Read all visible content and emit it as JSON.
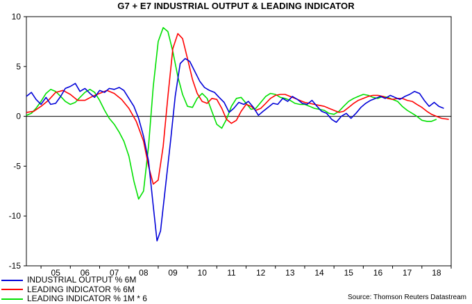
{
  "chart_data": {
    "type": "line",
    "title": "G7 + E7 INDUSTRIAL OUTPUT & LEADING INDICATOR",
    "source": "Source: Thomson Reuters Datastream",
    "ylim": [
      -15,
      10
    ],
    "yticks": [
      10,
      5,
      0,
      -5,
      -10,
      -15
    ],
    "xlim": [
      2004.5,
      2019.0
    ],
    "xtick_labels": [
      "05",
      "06",
      "07",
      "08",
      "09",
      "10",
      "11",
      "12",
      "13",
      "14",
      "15",
      "16",
      "17",
      "18"
    ],
    "grid": false,
    "zero_line": true,
    "legend_position": "bottom-left",
    "series": [
      {
        "name": "INDUSTRIAL OUTPUT % 6M",
        "color": "#0000d8",
        "points": [
          [
            2004.5,
            2.0
          ],
          [
            2004.67,
            2.4
          ],
          [
            2004.83,
            1.7
          ],
          [
            2005.0,
            1.2
          ],
          [
            2005.17,
            1.9
          ],
          [
            2005.33,
            1.2
          ],
          [
            2005.5,
            1.3
          ],
          [
            2005.67,
            2.0
          ],
          [
            2005.83,
            2.8
          ],
          [
            2006.0,
            3.0
          ],
          [
            2006.17,
            3.3
          ],
          [
            2006.33,
            2.5
          ],
          [
            2006.5,
            2.8
          ],
          [
            2006.67,
            2.3
          ],
          [
            2006.83,
            1.9
          ],
          [
            2007.0,
            2.6
          ],
          [
            2007.17,
            2.4
          ],
          [
            2007.33,
            2.8
          ],
          [
            2007.5,
            2.7
          ],
          [
            2007.67,
            2.9
          ],
          [
            2007.83,
            2.6
          ],
          [
            2008.0,
            1.8
          ],
          [
            2008.17,
            1.0
          ],
          [
            2008.33,
            -0.2
          ],
          [
            2008.5,
            -2.0
          ],
          [
            2008.67,
            -4.5
          ],
          [
            2008.83,
            -9.0
          ],
          [
            2008.96,
            -12.5
          ],
          [
            2009.08,
            -11.5
          ],
          [
            2009.25,
            -7.0
          ],
          [
            2009.42,
            -2.5
          ],
          [
            2009.58,
            2.0
          ],
          [
            2009.75,
            5.3
          ],
          [
            2009.92,
            5.8
          ],
          [
            2010.08,
            5.5
          ],
          [
            2010.25,
            4.5
          ],
          [
            2010.42,
            3.5
          ],
          [
            2010.58,
            2.9
          ],
          [
            2010.75,
            2.6
          ],
          [
            2010.92,
            2.4
          ],
          [
            2011.08,
            1.9
          ],
          [
            2011.25,
            1.4
          ],
          [
            2011.42,
            0.4
          ],
          [
            2011.58,
            0.8
          ],
          [
            2011.75,
            1.4
          ],
          [
            2011.92,
            1.2
          ],
          [
            2012.08,
            1.5
          ],
          [
            2012.25,
            0.9
          ],
          [
            2012.42,
            0.1
          ],
          [
            2012.58,
            0.5
          ],
          [
            2012.75,
            0.9
          ],
          [
            2012.92,
            1.3
          ],
          [
            2013.08,
            1.2
          ],
          [
            2013.25,
            1.8
          ],
          [
            2013.42,
            1.5
          ],
          [
            2013.58,
            2.0
          ],
          [
            2013.75,
            1.7
          ],
          [
            2013.92,
            1.3
          ],
          [
            2014.08,
            1.2
          ],
          [
            2014.25,
            1.6
          ],
          [
            2014.42,
            1.0
          ],
          [
            2014.58,
            0.5
          ],
          [
            2014.75,
            0.3
          ],
          [
            2014.92,
            -0.3
          ],
          [
            2015.08,
            -0.6
          ],
          [
            2015.25,
            0.0
          ],
          [
            2015.42,
            0.3
          ],
          [
            2015.58,
            -0.2
          ],
          [
            2015.75,
            0.3
          ],
          [
            2015.92,
            0.9
          ],
          [
            2016.08,
            1.3
          ],
          [
            2016.25,
            1.6
          ],
          [
            2016.42,
            1.8
          ],
          [
            2016.58,
            2.0
          ],
          [
            2016.75,
            1.8
          ],
          [
            2016.92,
            2.1
          ],
          [
            2017.08,
            1.9
          ],
          [
            2017.25,
            1.7
          ],
          [
            2017.42,
            2.0
          ],
          [
            2017.58,
            2.2
          ],
          [
            2017.75,
            2.5
          ],
          [
            2017.92,
            2.3
          ],
          [
            2018.08,
            1.6
          ],
          [
            2018.25,
            1.0
          ],
          [
            2018.42,
            1.4
          ],
          [
            2018.58,
            1.0
          ],
          [
            2018.75,
            0.8
          ]
        ]
      },
      {
        "name": "LEADING INDICATOR % 6M",
        "color": "#ff0000",
        "points": [
          [
            2004.5,
            0.4
          ],
          [
            2004.75,
            0.5
          ],
          [
            2005.0,
            1.0
          ],
          [
            2005.25,
            1.6
          ],
          [
            2005.5,
            2.4
          ],
          [
            2005.75,
            2.6
          ],
          [
            2006.0,
            2.2
          ],
          [
            2006.25,
            1.6
          ],
          [
            2006.5,
            1.6
          ],
          [
            2006.75,
            2.0
          ],
          [
            2007.0,
            2.3
          ],
          [
            2007.25,
            2.6
          ],
          [
            2007.5,
            2.3
          ],
          [
            2007.75,
            1.7
          ],
          [
            2008.0,
            0.8
          ],
          [
            2008.25,
            -0.5
          ],
          [
            2008.5,
            -2.5
          ],
          [
            2008.67,
            -5.0
          ],
          [
            2008.83,
            -6.8
          ],
          [
            2009.0,
            -6.4
          ],
          [
            2009.17,
            -3.0
          ],
          [
            2009.33,
            2.0
          ],
          [
            2009.5,
            6.8
          ],
          [
            2009.67,
            8.3
          ],
          [
            2009.83,
            7.8
          ],
          [
            2010.0,
            5.8
          ],
          [
            2010.17,
            3.7
          ],
          [
            2010.33,
            2.3
          ],
          [
            2010.5,
            1.5
          ],
          [
            2010.67,
            1.3
          ],
          [
            2010.83,
            1.8
          ],
          [
            2011.0,
            1.7
          ],
          [
            2011.17,
            0.8
          ],
          [
            2011.33,
            -0.3
          ],
          [
            2011.5,
            -0.7
          ],
          [
            2011.67,
            -0.4
          ],
          [
            2011.83,
            0.5
          ],
          [
            2012.0,
            1.2
          ],
          [
            2012.17,
            1.0
          ],
          [
            2012.33,
            0.6
          ],
          [
            2012.5,
            0.8
          ],
          [
            2012.67,
            1.3
          ],
          [
            2012.83,
            1.8
          ],
          [
            2013.0,
            2.1
          ],
          [
            2013.17,
            2.2
          ],
          [
            2013.33,
            2.2
          ],
          [
            2013.5,
            2.0
          ],
          [
            2013.67,
            1.8
          ],
          [
            2013.83,
            1.6
          ],
          [
            2014.0,
            1.4
          ],
          [
            2014.17,
            1.3
          ],
          [
            2014.33,
            1.2
          ],
          [
            2014.5,
            1.1
          ],
          [
            2014.67,
            1.0
          ],
          [
            2014.83,
            0.8
          ],
          [
            2015.0,
            0.6
          ],
          [
            2015.17,
            0.4
          ],
          [
            2015.33,
            0.5
          ],
          [
            2015.5,
            0.9
          ],
          [
            2015.67,
            1.3
          ],
          [
            2015.83,
            1.6
          ],
          [
            2016.0,
            1.8
          ],
          [
            2016.17,
            2.0
          ],
          [
            2016.33,
            2.1
          ],
          [
            2016.5,
            2.1
          ],
          [
            2016.67,
            2.0
          ],
          [
            2016.83,
            1.8
          ],
          [
            2017.0,
            1.7
          ],
          [
            2017.17,
            1.8
          ],
          [
            2017.33,
            1.8
          ],
          [
            2017.5,
            1.6
          ],
          [
            2017.67,
            1.5
          ],
          [
            2017.83,
            1.2
          ],
          [
            2018.0,
            0.9
          ],
          [
            2018.17,
            0.5
          ],
          [
            2018.33,
            0.2
          ],
          [
            2018.5,
            0.0
          ],
          [
            2018.67,
            -0.2
          ],
          [
            2018.92,
            -0.3
          ]
        ]
      },
      {
        "name": "LEADING INDICATOR % 1M * 6",
        "color": "#00e000",
        "points": [
          [
            2004.5,
            0.1
          ],
          [
            2004.67,
            0.3
          ],
          [
            2004.83,
            0.8
          ],
          [
            2005.0,
            1.5
          ],
          [
            2005.17,
            2.3
          ],
          [
            2005.33,
            2.7
          ],
          [
            2005.5,
            2.5
          ],
          [
            2005.67,
            2.0
          ],
          [
            2005.83,
            1.5
          ],
          [
            2006.0,
            1.2
          ],
          [
            2006.17,
            1.4
          ],
          [
            2006.33,
            1.9
          ],
          [
            2006.5,
            2.4
          ],
          [
            2006.67,
            2.7
          ],
          [
            2006.83,
            2.4
          ],
          [
            2007.0,
            1.6
          ],
          [
            2007.17,
            0.6
          ],
          [
            2007.33,
            -0.2
          ],
          [
            2007.5,
            -0.8
          ],
          [
            2007.67,
            -1.6
          ],
          [
            2007.83,
            -2.5
          ],
          [
            2008.0,
            -4.0
          ],
          [
            2008.17,
            -6.5
          ],
          [
            2008.33,
            -8.3
          ],
          [
            2008.5,
            -7.5
          ],
          [
            2008.67,
            -3.0
          ],
          [
            2008.83,
            3.0
          ],
          [
            2009.0,
            7.5
          ],
          [
            2009.17,
            8.9
          ],
          [
            2009.33,
            8.5
          ],
          [
            2009.5,
            6.5
          ],
          [
            2009.67,
            4.0
          ],
          [
            2009.83,
            2.2
          ],
          [
            2010.0,
            1.0
          ],
          [
            2010.17,
            0.9
          ],
          [
            2010.33,
            1.8
          ],
          [
            2010.5,
            2.3
          ],
          [
            2010.67,
            1.8
          ],
          [
            2010.83,
            0.5
          ],
          [
            2011.0,
            -0.8
          ],
          [
            2011.17,
            -1.2
          ],
          [
            2011.33,
            -0.3
          ],
          [
            2011.5,
            1.0
          ],
          [
            2011.67,
            1.8
          ],
          [
            2011.83,
            1.9
          ],
          [
            2012.0,
            1.3
          ],
          [
            2012.17,
            0.7
          ],
          [
            2012.33,
            0.8
          ],
          [
            2012.5,
            1.4
          ],
          [
            2012.67,
            2.0
          ],
          [
            2012.83,
            2.3
          ],
          [
            2013.0,
            2.2
          ],
          [
            2013.17,
            1.9
          ],
          [
            2013.33,
            1.8
          ],
          [
            2013.5,
            1.6
          ],
          [
            2013.67,
            1.3
          ],
          [
            2013.83,
            1.2
          ],
          [
            2014.0,
            1.2
          ],
          [
            2014.17,
            1.0
          ],
          [
            2014.33,
            0.8
          ],
          [
            2014.5,
            0.7
          ],
          [
            2014.67,
            0.6
          ],
          [
            2014.83,
            0.3
          ],
          [
            2015.0,
            0.2
          ],
          [
            2015.17,
            0.5
          ],
          [
            2015.33,
            1.0
          ],
          [
            2015.5,
            1.5
          ],
          [
            2015.67,
            1.8
          ],
          [
            2015.83,
            2.0
          ],
          [
            2016.0,
            2.2
          ],
          [
            2016.17,
            2.1
          ],
          [
            2016.33,
            1.9
          ],
          [
            2016.5,
            1.8
          ],
          [
            2016.67,
            2.0
          ],
          [
            2016.83,
            1.9
          ],
          [
            2017.0,
            1.7
          ],
          [
            2017.17,
            1.5
          ],
          [
            2017.33,
            1.0
          ],
          [
            2017.5,
            0.6
          ],
          [
            2017.67,
            0.3
          ],
          [
            2017.83,
            0.0
          ],
          [
            2018.0,
            -0.4
          ],
          [
            2018.17,
            -0.5
          ],
          [
            2018.33,
            -0.5
          ],
          [
            2018.5,
            -0.3
          ]
        ]
      }
    ]
  }
}
